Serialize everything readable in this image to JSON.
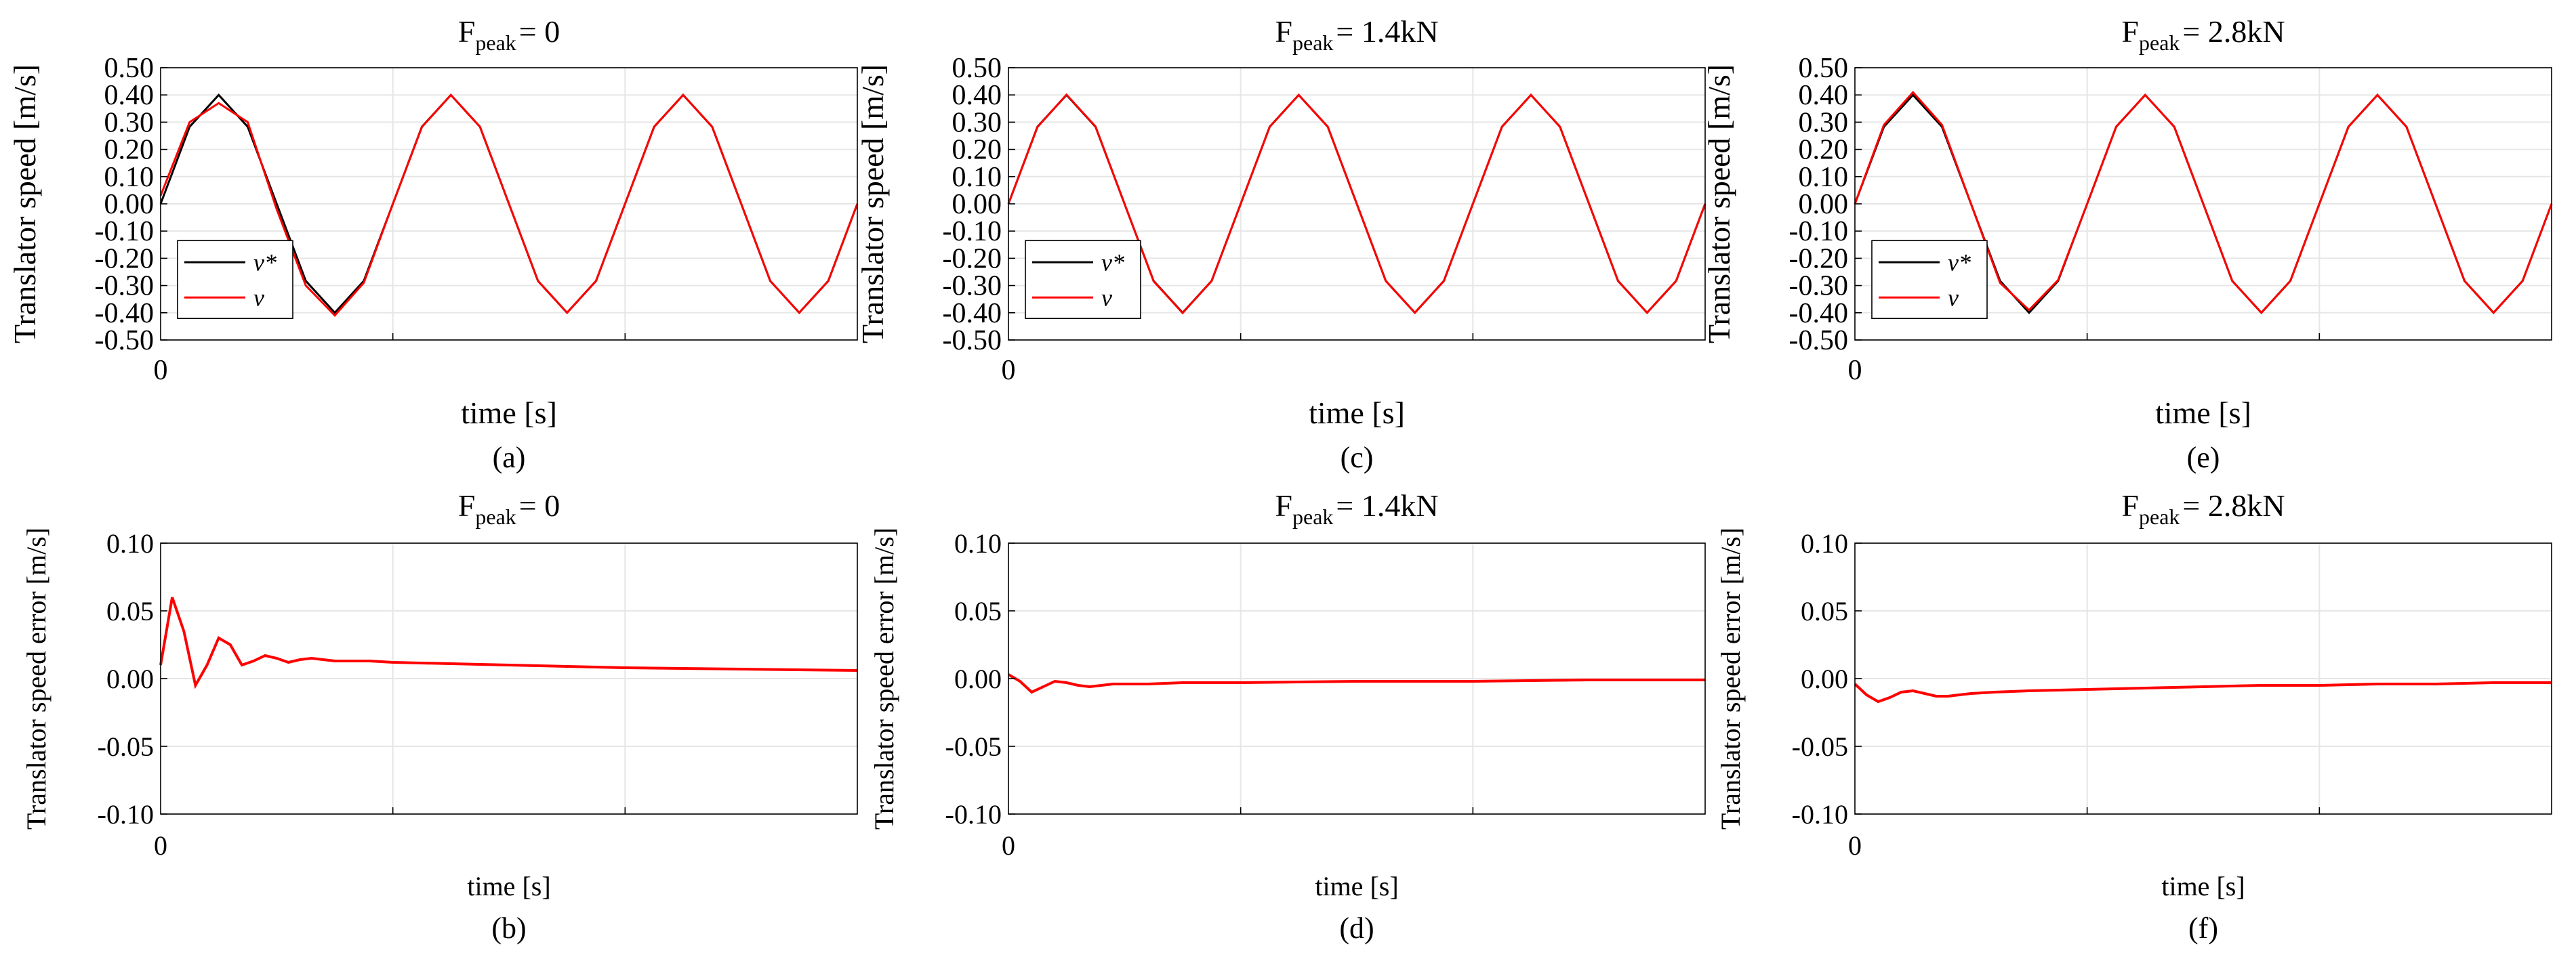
{
  "colors": {
    "reference": "#000000",
    "measured": "#ff0000",
    "grid": "#e6e6e6"
  },
  "chart_data": [
    {
      "id": "a",
      "type": "line",
      "caption": "(a)",
      "title": {
        "base": "F",
        "sub": "peak",
        "suffix": "= 0"
      },
      "xlabel": "time [s]",
      "ylabel": "Translator speed [m/s]",
      "x_tick_labels": [
        "0"
      ],
      "ylim": [
        -0.5,
        0.5
      ],
      "y_ticks": [
        "0.50",
        "0.40",
        "0.30",
        "0.20",
        "0.10",
        "0.00",
        "-0.10",
        "-0.20",
        "-0.30",
        "-0.40",
        "-0.50"
      ],
      "legend": {
        "entries": [
          "v*",
          "v"
        ],
        "position": "bottom-left"
      },
      "series": [
        {
          "name": "v*",
          "color": "#000000",
          "x": [
            0,
            0.25,
            0.5,
            0.75,
            1,
            1.25,
            1.5,
            1.75,
            2,
            2.25,
            2.5,
            2.75,
            3,
            3.25,
            3.5,
            3.75,
            4,
            4.25,
            4.5,
            4.75,
            5,
            5.25,
            5.5,
            5.75,
            6
          ],
          "values": [
            0,
            0.283,
            0.4,
            0.283,
            0,
            -0.283,
            -0.4,
            -0.283,
            0,
            0.283,
            0.4,
            0.283,
            0,
            -0.283,
            -0.4,
            -0.283,
            0,
            0.283,
            0.4,
            0.283,
            0,
            -0.283,
            -0.4,
            -0.283,
            0
          ]
        },
        {
          "name": "v",
          "color": "#ff0000",
          "x": [
            0,
            0.25,
            0.5,
            0.75,
            1,
            1.25,
            1.5,
            1.75,
            2,
            2.25,
            2.5,
            2.75,
            3,
            3.25,
            3.5,
            3.75,
            4,
            4.25,
            4.5,
            4.75,
            5,
            5.25,
            5.5,
            5.75,
            6
          ],
          "values": [
            0.03,
            0.3,
            0.37,
            0.3,
            -0.02,
            -0.3,
            -0.41,
            -0.29,
            0,
            0.282,
            0.4,
            0.283,
            0,
            -0.283,
            -0.4,
            -0.283,
            0,
            0.283,
            0.4,
            0.283,
            0,
            -0.283,
            -0.4,
            -0.283,
            0
          ]
        }
      ]
    },
    {
      "id": "c",
      "type": "line",
      "caption": "(c)",
      "title": {
        "base": "F",
        "sub": "peak",
        "suffix": "= 1.4kN"
      },
      "xlabel": "time [s]",
      "ylabel": "Translator speed [m/s]",
      "x_tick_labels": [
        "0"
      ],
      "ylim": [
        -0.5,
        0.5
      ],
      "y_ticks": [
        "0.50",
        "0.40",
        "0.30",
        "0.20",
        "0.10",
        "0.00",
        "-0.10",
        "-0.20",
        "-0.30",
        "-0.40",
        "-0.50"
      ],
      "legend": {
        "entries": [
          "v*",
          "v"
        ],
        "position": "bottom-left"
      },
      "series": [
        {
          "name": "v*",
          "color": "#000000",
          "x": [
            0,
            0.25,
            0.5,
            0.75,
            1,
            1.25,
            1.5,
            1.75,
            2,
            2.25,
            2.5,
            2.75,
            3,
            3.25,
            3.5,
            3.75,
            4,
            4.25,
            4.5,
            4.75,
            5,
            5.25,
            5.5,
            5.75,
            6
          ],
          "values": [
            0,
            0.283,
            0.4,
            0.283,
            0,
            -0.283,
            -0.4,
            -0.283,
            0,
            0.283,
            0.4,
            0.283,
            0,
            -0.283,
            -0.4,
            -0.283,
            0,
            0.283,
            0.4,
            0.283,
            0,
            -0.283,
            -0.4,
            -0.283,
            0
          ]
        },
        {
          "name": "v",
          "color": "#ff0000",
          "x": [
            0,
            0.25,
            0.5,
            0.75,
            1,
            1.25,
            1.5,
            1.75,
            2,
            2.25,
            2.5,
            2.75,
            3,
            3.25,
            3.5,
            3.75,
            4,
            4.25,
            4.5,
            4.75,
            5,
            5.25,
            5.5,
            5.75,
            6
          ],
          "values": [
            0,
            0.282,
            0.401,
            0.284,
            0,
            -0.284,
            -0.401,
            -0.283,
            0,
            0.283,
            0.4,
            0.283,
            0,
            -0.283,
            -0.4,
            -0.283,
            0,
            0.283,
            0.4,
            0.283,
            0,
            -0.283,
            -0.4,
            -0.283,
            0
          ]
        }
      ]
    },
    {
      "id": "e",
      "type": "line",
      "caption": "(e)",
      "title": {
        "base": "F",
        "sub": "peak",
        "suffix": "= 2.8kN"
      },
      "xlabel": "time [s]",
      "ylabel": "Translator speed [m/s]",
      "x_tick_labels": [
        "0"
      ],
      "ylim": [
        -0.5,
        0.5
      ],
      "y_ticks": [
        "0.50",
        "0.40",
        "0.30",
        "0.20",
        "0.10",
        "0.00",
        "-0.10",
        "-0.20",
        "-0.30",
        "-0.40",
        "-0.50"
      ],
      "legend": {
        "entries": [
          "v*",
          "v"
        ],
        "position": "bottom-left"
      },
      "series": [
        {
          "name": "v*",
          "color": "#000000",
          "x": [
            0,
            0.25,
            0.5,
            0.75,
            1,
            1.25,
            1.5,
            1.75,
            2,
            2.25,
            2.5,
            2.75,
            3,
            3.25,
            3.5,
            3.75,
            4,
            4.25,
            4.5,
            4.75,
            5,
            5.25,
            5.5,
            5.75,
            6
          ],
          "values": [
            0,
            0.283,
            0.4,
            0.283,
            0,
            -0.283,
            -0.4,
            -0.283,
            0,
            0.283,
            0.4,
            0.283,
            0,
            -0.283,
            -0.4,
            -0.283,
            0,
            0.283,
            0.4,
            0.283,
            0,
            -0.283,
            -0.4,
            -0.283,
            0
          ]
        },
        {
          "name": "v",
          "color": "#ff0000",
          "x": [
            0,
            0.25,
            0.5,
            0.75,
            1,
            1.25,
            1.5,
            1.75,
            2,
            2.25,
            2.5,
            2.75,
            3,
            3.25,
            3.5,
            3.75,
            4,
            4.25,
            4.5,
            4.75,
            5,
            5.25,
            5.5,
            5.75,
            6
          ],
          "values": [
            0,
            0.29,
            0.41,
            0.29,
            0,
            -0.29,
            -0.39,
            -0.28,
            0,
            0.283,
            0.4,
            0.283,
            0,
            -0.283,
            -0.4,
            -0.283,
            0,
            0.283,
            0.4,
            0.283,
            0,
            -0.283,
            -0.4,
            -0.283,
            0
          ]
        }
      ]
    },
    {
      "id": "b",
      "type": "line",
      "caption": "(b)",
      "title": {
        "base": "F",
        "sub": "peak",
        "suffix": "= 0"
      },
      "xlabel": "time [s]",
      "ylabel": "Translator speed error [m/s]",
      "x_tick_labels": [
        "0"
      ],
      "ylim": [
        -0.1,
        0.1
      ],
      "y_ticks": [
        "0.10",
        "0.05",
        "0.00",
        "-0.05",
        "-0.10"
      ],
      "series": [
        {
          "name": "error",
          "color": "#ff0000",
          "x": [
            0,
            0.1,
            0.2,
            0.3,
            0.4,
            0.5,
            0.6,
            0.7,
            0.8,
            0.9,
            1.0,
            1.1,
            1.2,
            1.3,
            1.4,
            1.5,
            1.6,
            1.8,
            2.0,
            2.5,
            3,
            4,
            5,
            6
          ],
          "values": [
            0.01,
            0.06,
            0.035,
            -0.005,
            0.01,
            0.03,
            0.025,
            0.01,
            0.013,
            0.017,
            0.015,
            0.012,
            0.014,
            0.015,
            0.014,
            0.013,
            0.013,
            0.013,
            0.012,
            0.011,
            0.01,
            0.008,
            0.007,
            0.006
          ]
        }
      ]
    },
    {
      "id": "d",
      "type": "line",
      "caption": "(d)",
      "title": {
        "base": "F",
        "sub": "peak",
        "suffix": "= 1.4kN"
      },
      "xlabel": "time [s]",
      "ylabel": "Translator speed error [m/s]",
      "x_tick_labels": [
        "0"
      ],
      "ylim": [
        -0.1,
        0.1
      ],
      "y_ticks": [
        "0.10",
        "0.05",
        "0.00",
        "-0.05",
        "-0.10"
      ],
      "series": [
        {
          "name": "error",
          "color": "#ff0000",
          "x": [
            0,
            0.1,
            0.2,
            0.3,
            0.4,
            0.5,
            0.6,
            0.7,
            0.8,
            0.9,
            1.0,
            1.2,
            1.5,
            2,
            3,
            4,
            5,
            6
          ],
          "values": [
            0.003,
            -0.002,
            -0.01,
            -0.006,
            -0.002,
            -0.003,
            -0.005,
            -0.006,
            -0.005,
            -0.004,
            -0.004,
            -0.004,
            -0.003,
            -0.003,
            -0.002,
            -0.002,
            -0.001,
            -0.001
          ]
        }
      ]
    },
    {
      "id": "f",
      "type": "line",
      "caption": "(f)",
      "title": {
        "base": "F",
        "sub": "peak",
        "suffix": "= 2.8kN"
      },
      "xlabel": "time [s]",
      "ylabel": "Translator speed error [m/s]",
      "x_tick_labels": [
        "0"
      ],
      "ylim": [
        -0.1,
        0.1
      ],
      "y_ticks": [
        "0.10",
        "0.05",
        "0.00",
        "-0.05",
        "-0.10"
      ],
      "series": [
        {
          "name": "error",
          "color": "#ff0000",
          "x": [
            0,
            0.1,
            0.2,
            0.3,
            0.4,
            0.5,
            0.6,
            0.7,
            0.8,
            0.9,
            1.0,
            1.2,
            1.5,
            2,
            2.5,
            3,
            3.5,
            4,
            4.5,
            5,
            5.5,
            6
          ],
          "values": [
            -0.004,
            -0.012,
            -0.017,
            -0.014,
            -0.01,
            -0.009,
            -0.011,
            -0.013,
            -0.013,
            -0.012,
            -0.011,
            -0.01,
            -0.009,
            -0.008,
            -0.007,
            -0.006,
            -0.005,
            -0.005,
            -0.004,
            -0.004,
            -0.003,
            -0.003
          ]
        }
      ]
    }
  ]
}
